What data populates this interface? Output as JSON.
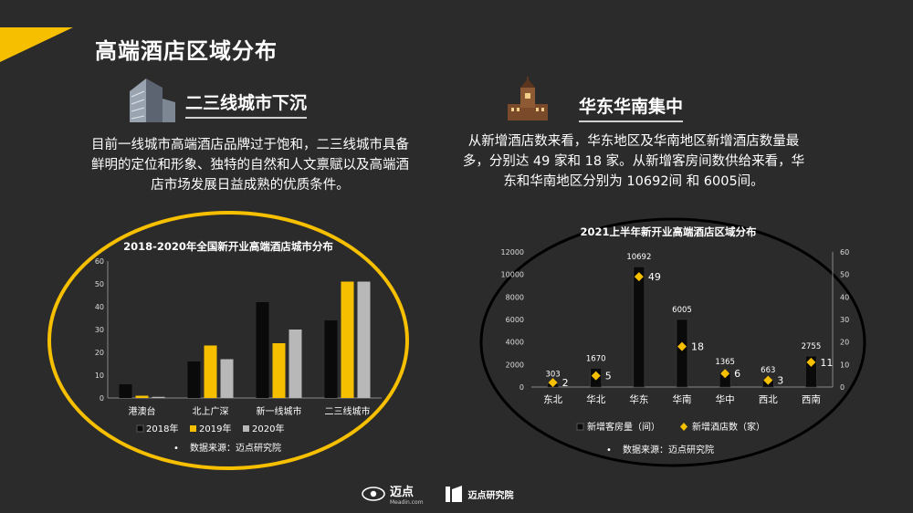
{
  "page": {
    "title": "高端酒店区域分布",
    "left": {
      "heading": "二三线城市下沉",
      "text": "目前一线城市高端酒店品牌过于饱和，二三线城市具备鲜明的定位和形象、独特的自然和人文禀赋以及高端酒店市场发展日益成熟的优质条件。"
    },
    "right": {
      "heading": "华东华南集中",
      "text": "从新增酒店数来看，华东地区及华南地区新增酒店数量最多，分别达 49 家和 18 家。从新增客房间数供给来看，华东和华南地区分别为 10692间 和 6005间。"
    },
    "logos": {
      "brand1": "迈点",
      "brand1_sub": "Meadin.com",
      "brand2": "迈点研究院"
    },
    "colors": {
      "bg": "#2b2b2b",
      "accent": "#f6c000",
      "black": "#0a0a0a",
      "gray": "#b8b8b8"
    }
  },
  "chart_data": [
    {
      "type": "bar",
      "title": "2018-2020年全国新开业高端酒店城市分布",
      "categories": [
        "港澳台",
        "北上广深",
        "新一线城市",
        "二三线城市"
      ],
      "series": [
        {
          "name": "2018年",
          "values": [
            6,
            16,
            42,
            34
          ],
          "color": "#0a0a0a"
        },
        {
          "name": "2019年",
          "values": [
            1,
            23,
            24,
            51
          ],
          "color": "#f6c000"
        },
        {
          "name": "2020年",
          "values": [
            0.5,
            17,
            30,
            51
          ],
          "color": "#b8b8b8"
        }
      ],
      "ylim": [
        0,
        60
      ],
      "yticks": [
        0,
        10,
        20,
        30,
        40,
        50,
        60
      ],
      "legend": "bottom",
      "source": "数据来源：迈点研究院"
    },
    {
      "type": "bar",
      "title": "2021上半年新开业高端酒店区域分布",
      "categories": [
        "东北",
        "华北",
        "华东",
        "华南",
        "华中",
        "西北",
        "西南"
      ],
      "series": [
        {
          "name": "新增客房量（间）",
          "values": [
            303,
            1670,
            10692,
            6005,
            1365,
            663,
            2755
          ],
          "color": "#0a0a0a",
          "axis": "left"
        },
        {
          "name": "新增酒店数（家）",
          "values": [
            2,
            5,
            49,
            18,
            6,
            3,
            11
          ],
          "color": "#f6c000",
          "axis": "right",
          "marker": "diamond"
        }
      ],
      "ylim": [
        0,
        12000
      ],
      "yticks": [
        0,
        2000,
        4000,
        6000,
        8000,
        10000,
        12000
      ],
      "y2lim": [
        0,
        60
      ],
      "y2ticks": [
        0,
        10,
        20,
        30,
        40,
        50,
        60
      ],
      "legend": "bottom",
      "source": "数据来源：迈点研究院"
    }
  ]
}
